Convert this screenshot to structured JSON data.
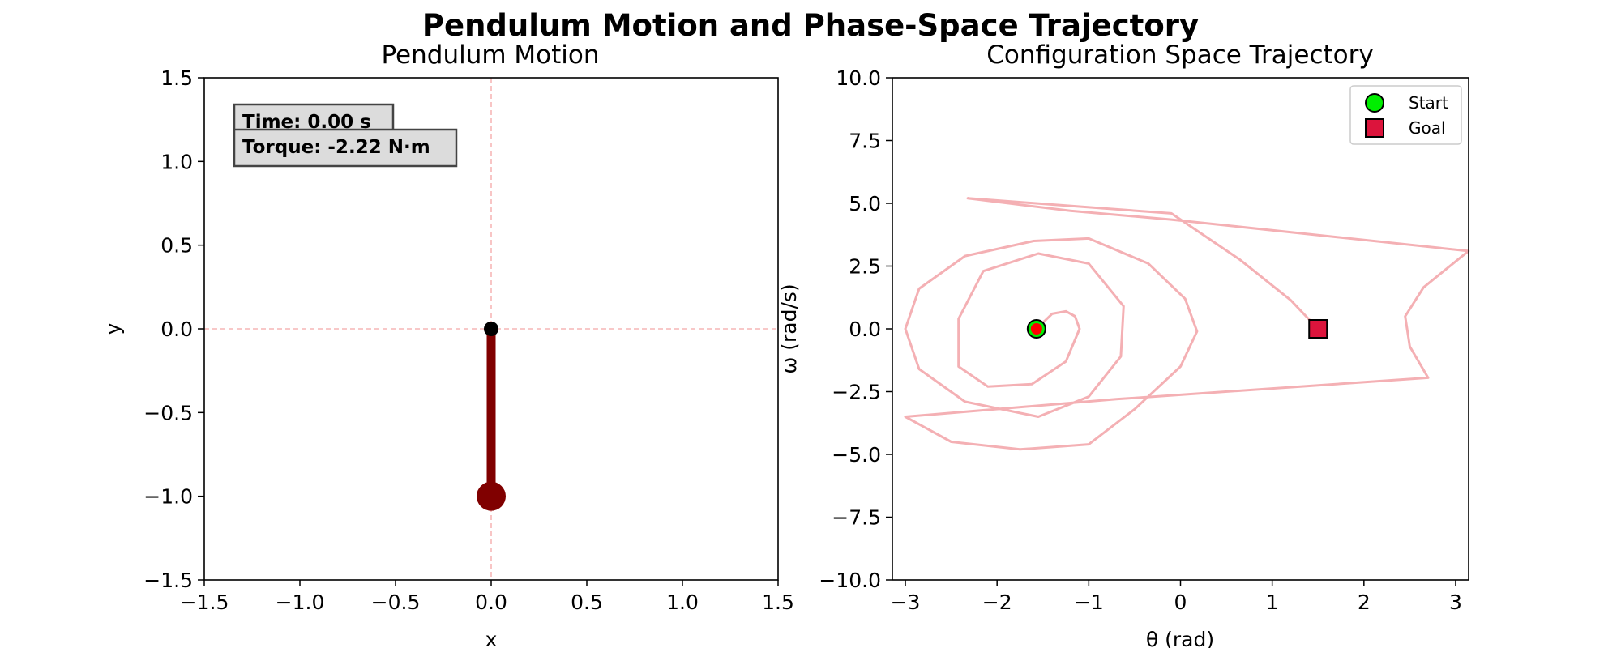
{
  "suptitle": "Pendulum Motion and Phase-Space Trajectory",
  "chart_data": [
    {
      "type": "line",
      "title": "Pendulum Motion",
      "xlabel": "x",
      "ylabel": "y",
      "xlim": [
        -1.5,
        1.5
      ],
      "ylim": [
        -1.5,
        1.5
      ],
      "xticks": [
        -1.5,
        -1.0,
        -0.5,
        0.0,
        0.5,
        1.0,
        1.5
      ],
      "xtick_labels": [
        "−1.5",
        "−1.0",
        "−0.5",
        "0.0",
        "0.5",
        "1.0",
        "1.5"
      ],
      "yticks": [
        1.5,
        1.0,
        0.5,
        0.0,
        -0.5,
        -1.0,
        -1.5
      ],
      "ytick_labels": [
        "1.5",
        "1.0",
        "0.5",
        "0.0",
        "−0.5",
        "−1.0",
        "−1.5"
      ],
      "pivot": [
        0.0,
        0.0
      ],
      "bob": [
        0.0,
        -1.0
      ],
      "rod_color": "#800000",
      "bob_color": "#800000",
      "pivot_color": "#000000",
      "guide_color": "#f4a6a6",
      "info": {
        "time_label": "Time: 0.00 s",
        "torque_label": "Torque: -2.22 N·m"
      }
    },
    {
      "type": "line",
      "title": "Configuration Space Trajectory",
      "xlabel": "θ (rad)",
      "ylabel": "ω (rad/s)",
      "xlim": [
        -3.14159,
        3.14159
      ],
      "ylim": [
        -10,
        10
      ],
      "xticks": [
        -3,
        -2,
        -1,
        0,
        1,
        2,
        3
      ],
      "xtick_labels": [
        "−3",
        "−2",
        "−1",
        "0",
        "1",
        "2",
        "3"
      ],
      "yticks": [
        10,
        7.5,
        5,
        2.5,
        0,
        -2.5,
        -5,
        -7.5,
        -10
      ],
      "ytick_labels": [
        "10.0",
        "7.5",
        "5.0",
        "2.5",
        "0.0",
        "−2.5",
        "−5.0",
        "−7.5",
        "−10.0"
      ],
      "trajectory_color": "#f4b0b4",
      "trajectory": {
        "theta": [
          -1.57,
          -1.4,
          -1.25,
          -1.15,
          -1.1,
          -1.25,
          -1.62,
          -2.1,
          -2.42,
          -2.42,
          -2.15,
          -1.55,
          -1.0,
          -0.62,
          -0.65,
          -1.0,
          -1.55,
          -2.35,
          -2.85,
          -3.0,
          -2.85,
          -2.35,
          -1.6,
          -1.0,
          -0.35,
          0.05,
          0.18,
          0.0,
          -0.5,
          -1.0,
          -1.75,
          -2.5,
          -3.0,
          -0.7,
          2.7,
          2.5,
          2.45,
          2.65,
          3.14,
          -0.1,
          -1.2,
          -2.32,
          -0.1,
          0.65,
          1.2,
          1.5
        ],
        "omega": [
          0.0,
          0.6,
          0.7,
          0.5,
          0.0,
          -1.3,
          -2.2,
          -2.3,
          -1.5,
          0.4,
          2.3,
          3.0,
          2.6,
          0.9,
          -1.1,
          -2.7,
          -3.5,
          -2.9,
          -1.6,
          0.0,
          1.6,
          2.9,
          3.5,
          3.6,
          2.6,
          1.2,
          -0.1,
          -1.5,
          -3.2,
          -4.6,
          -4.8,
          -4.5,
          -3.5,
          -2.8,
          -1.95,
          -0.7,
          0.5,
          1.65,
          3.1,
          4.35,
          4.7,
          5.2,
          4.6,
          2.75,
          1.15,
          0.0
        ]
      },
      "start": {
        "theta": -1.57,
        "omega": 0.0,
        "color": "#00ee00"
      },
      "current": {
        "theta": -1.57,
        "omega": 0.0,
        "color": "#ff0000"
      },
      "goal": {
        "theta": 1.5,
        "omega": 0.0,
        "color": "#dc143c"
      },
      "legend": {
        "position": "top-right",
        "entries": [
          {
            "label": "Start",
            "marker": "circle",
            "color": "#00ee00"
          },
          {
            "label": "Goal",
            "marker": "square",
            "color": "#dc143c"
          }
        ]
      }
    }
  ]
}
